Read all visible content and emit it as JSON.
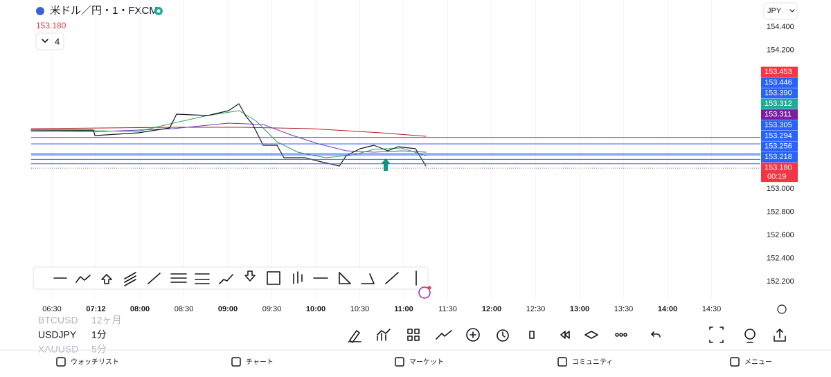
{
  "header": {
    "symbol": "米ドル／円・1・FXCM",
    "price": "153.180",
    "indicator_count": "4",
    "currency": "JPY"
  },
  "price_axis": {
    "ylim": [
      152.2,
      154.4
    ],
    "ticks": [
      {
        "value": 154.4,
        "label": "154.400"
      },
      {
        "value": 154.2,
        "label": "154.200"
      },
      {
        "value": 153,
        "label": "153.000"
      },
      {
        "value": 152.8,
        "label": "152.800"
      },
      {
        "value": 152.6,
        "label": "152.600"
      },
      {
        "value": 152.4,
        "label": "152.400"
      },
      {
        "value": 152.2,
        "label": "152.200"
      }
    ]
  },
  "price_labels": [
    {
      "value": 153.453,
      "label": "153.453",
      "color": "#f23645"
    },
    {
      "value": 153.446,
      "label": "153.446",
      "color": "#2962ff"
    },
    {
      "value": 153.39,
      "label": "153.390",
      "color": "#2962ff"
    },
    {
      "value": 153.312,
      "label": "153.312",
      "color": "#22ab94"
    },
    {
      "value": 153.311,
      "label": "153.311",
      "color": "#7b1fa2"
    },
    {
      "value": 153.305,
      "label": "153.305",
      "color": "#2962ff"
    },
    {
      "value": 153.294,
      "label": "153.294",
      "color": "#2962ff"
    },
    {
      "value": 153.256,
      "label": "153.256",
      "color": "#2962ff"
    },
    {
      "value": 153.218,
      "label": "153.218",
      "color": "#2962ff"
    },
    {
      "value": 153.18,
      "label": "153.180",
      "color": "#f23645"
    }
  ],
  "countdown": "00:19",
  "time_axis": [
    {
      "label": "06:30",
      "bold": false
    },
    {
      "label": "07:12",
      "bold": true
    },
    {
      "label": "08:00",
      "bold": true
    },
    {
      "label": "08:30",
      "bold": false
    },
    {
      "label": "09:00",
      "bold": true
    },
    {
      "label": "09:30",
      "bold": false
    },
    {
      "label": "10:00",
      "bold": true
    },
    {
      "label": "10:30",
      "bold": false
    },
    {
      "label": "11:00",
      "bold": true
    },
    {
      "label": "11:30",
      "bold": false
    },
    {
      "label": "12:00",
      "bold": true
    },
    {
      "label": "12:30",
      "bold": false
    },
    {
      "label": "13:00",
      "bold": true
    },
    {
      "label": "13:30",
      "bold": false
    },
    {
      "label": "14:00",
      "bold": true
    },
    {
      "label": "14:30",
      "bold": false
    }
  ],
  "watchlist": [
    {
      "symbol": "BTCUSD",
      "interval": "12ヶ月"
    },
    {
      "symbol": "USDJPY",
      "interval": "1分"
    },
    {
      "symbol": "XAUUSD",
      "interval": "5分"
    }
  ],
  "nav": [
    "ウォッチリスト",
    "チャート",
    "マーケット",
    "コミュニティ",
    "メニュー"
  ]
}
